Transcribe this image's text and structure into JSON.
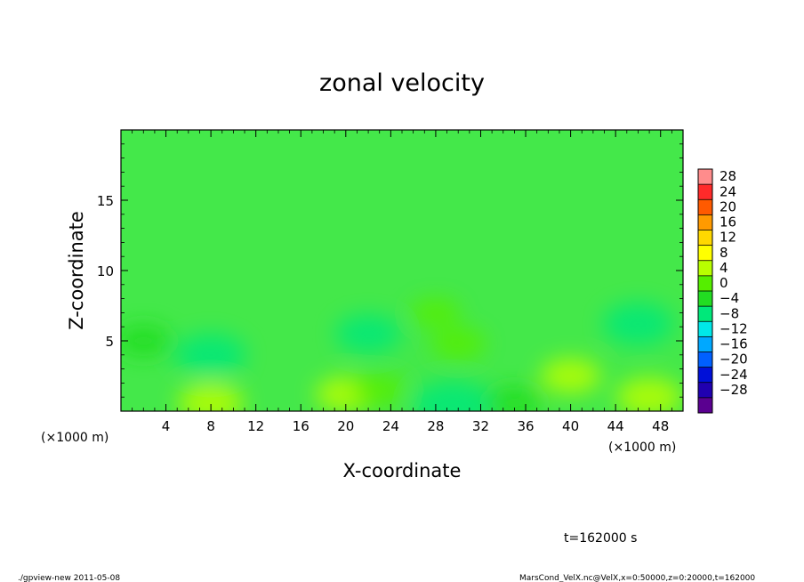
{
  "chart_data": {
    "type": "heatmap",
    "title": "zonal velocity",
    "xlabel": "X-coordinate",
    "ylabel": "Z-coordinate",
    "x_unit": "(×1000 m)",
    "y_unit": "(×1000 m)",
    "xlim": [
      0,
      50
    ],
    "ylim": [
      0,
      20
    ],
    "x_ticks": [
      4,
      8,
      12,
      16,
      20,
      24,
      28,
      32,
      36,
      40,
      44,
      48
    ],
    "y_ticks": [
      5,
      10,
      15
    ],
    "colorbar": {
      "labels": [
        28,
        24,
        20,
        16,
        12,
        8,
        4,
        0,
        -4,
        -8,
        -12,
        -16,
        -20,
        -24,
        -28
      ],
      "colors": [
        "#ff8c8c",
        "#ff2a2a",
        "#ff5a00",
        "#ff9a00",
        "#ffd800",
        "#ffff00",
        "#b8ff00",
        "#55ee00",
        "#22dd22",
        "#00e87a",
        "#00e8e8",
        "#00a8ff",
        "#0060ff",
        "#0010d8",
        "#2000b0",
        "#5a0090"
      ]
    },
    "cells": [
      {
        "x": 8,
        "z": 0.6,
        "v": 5
      },
      {
        "x": 20,
        "z": 1.2,
        "v": 4
      },
      {
        "x": 23,
        "z": 1.5,
        "v": 3
      },
      {
        "x": 40,
        "z": 2.5,
        "v": 4
      },
      {
        "x": 47,
        "z": 1.0,
        "v": 5
      },
      {
        "x": 30,
        "z": 4.8,
        "v": 3
      },
      {
        "x": 28,
        "z": 7.0,
        "v": 2
      },
      {
        "x": 8,
        "z": 4.0,
        "v": -6
      },
      {
        "x": 22,
        "z": 5.5,
        "v": -5
      },
      {
        "x": 46,
        "z": 6.2,
        "v": -6
      },
      {
        "x": 2,
        "z": 5.0,
        "v": -3
      },
      {
        "x": 29.5,
        "z": 0.4,
        "v": -8
      },
      {
        "x": 35,
        "z": 0.6,
        "v": -3
      }
    ],
    "time_label": "t=162000 s"
  },
  "footer": {
    "left": "./gpview-new  2011-05-08",
    "right": "MarsCond_VelX.nc@VelX,x=0:50000,z=0:20000,t=162000"
  }
}
